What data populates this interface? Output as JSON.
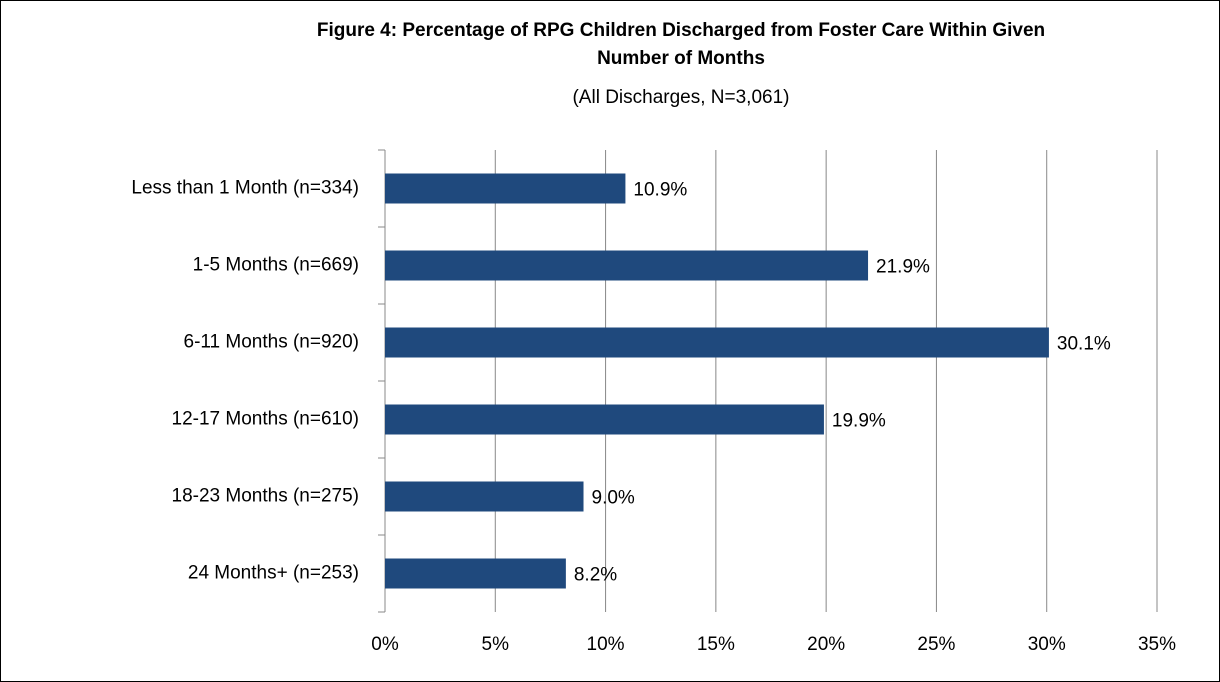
{
  "chart_data": {
    "type": "bar",
    "title": "Figure 4: Percentage of RPG Children Discharged from Foster Care Within Given Number of Months",
    "subtitle": "(All Discharges, N=3,061)",
    "categories": [
      "Less than 1 Month (n=334)",
      "1-5 Months (n=669)",
      "6-11 Months (n=920)",
      "12-17 Months (n=610)",
      "18-23 Months (n=275)",
      "24 Months+ (n=253)"
    ],
    "values": [
      10.9,
      21.9,
      30.1,
      19.9,
      9.0,
      8.2
    ],
    "value_labels": [
      "10.9%",
      "21.9%",
      "30.1%",
      "19.9%",
      "9.0%",
      "8.2%"
    ],
    "color": "#1f497d",
    "xlim": [
      0,
      35
    ],
    "xticks": [
      {
        "value": 0,
        "label": "0%"
      },
      {
        "value": 5,
        "label": "5%"
      },
      {
        "value": 10,
        "label": "10%"
      },
      {
        "value": 15,
        "label": "15%"
      },
      {
        "value": 20,
        "label": "20%"
      },
      {
        "value": 25,
        "label": "25%"
      },
      {
        "value": 30,
        "label": "30%"
      },
      {
        "value": 35,
        "label": "35%"
      }
    ],
    "grid": true
  }
}
